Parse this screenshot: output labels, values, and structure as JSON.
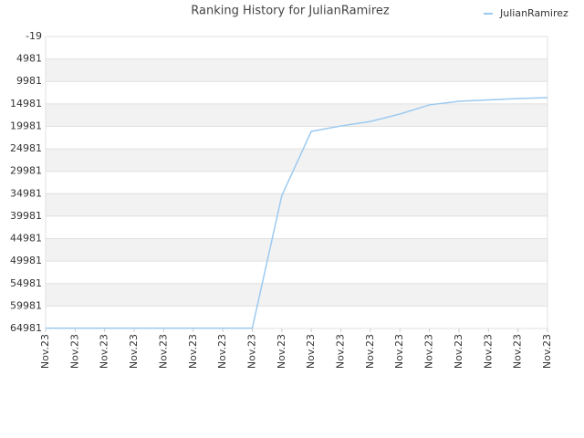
{
  "chart_data": {
    "type": "line",
    "title": "Ranking History for JulianRamirez",
    "categories": [
      "Nov.23",
      "Nov.23",
      "Nov.23",
      "Nov.23",
      "Nov.23",
      "Nov.23",
      "Nov.23",
      "Nov.23",
      "Nov.23",
      "Nov.23",
      "Nov.23",
      "Nov.23",
      "Nov.23",
      "Nov.23",
      "Nov.23",
      "Nov.23",
      "Nov.23",
      "Nov.23"
    ],
    "series": [
      {
        "name": "JulianRamirez",
        "color": "#9ccaf0",
        "values": [
          64900,
          64900,
          64900,
          64900,
          64900,
          64900,
          64900,
          64900,
          35400,
          21100,
          19900,
          18900,
          17250,
          15200,
          14400,
          14100,
          13800,
          13600
        ]
      }
    ],
    "ylim": [
      64981,
      -19
    ],
    "yticks": [
      -19,
      4981,
      9981,
      14981,
      19981,
      24981,
      29981,
      34981,
      39981,
      44981,
      49981,
      54981,
      59981,
      64981
    ],
    "grid": true,
    "legend": "top-right"
  }
}
